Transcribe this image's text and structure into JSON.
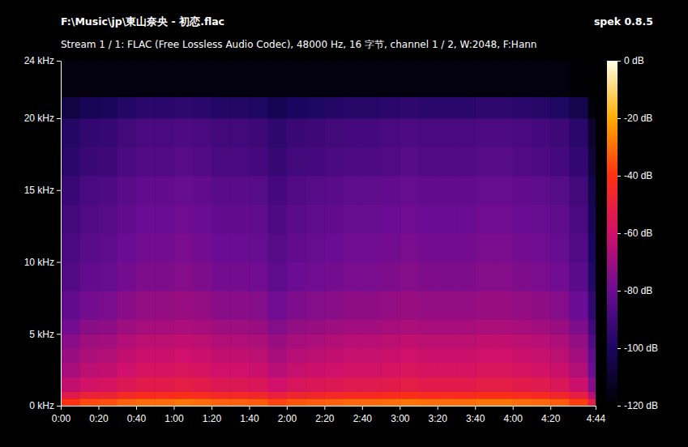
{
  "chart_data": {
    "type": "heatmap",
    "title": "F:\\Music\\jp\\東山奈央 - 初恋.flac",
    "subtitle": "Stream 1 / 1: FLAC (Free Lossless Audio Codec), 48000 Hz, 16 字节, channel 1 / 2, W:2048, F:Hann",
    "annotations": [
      "spek 0.8.5"
    ],
    "xlim": [
      0,
      284
    ],
    "xticks": [
      {
        "value": 0,
        "label": "0:00"
      },
      {
        "value": 20,
        "label": "0:20"
      },
      {
        "value": 40,
        "label": "0:40"
      },
      {
        "value": 60,
        "label": "1:00"
      },
      {
        "value": 80,
        "label": "1:20"
      },
      {
        "value": 100,
        "label": "1:40"
      },
      {
        "value": 120,
        "label": "2:00"
      },
      {
        "value": 140,
        "label": "2:20"
      },
      {
        "value": 160,
        "label": "2:40"
      },
      {
        "value": 180,
        "label": "3:00"
      },
      {
        "value": 200,
        "label": "3:20"
      },
      {
        "value": 220,
        "label": "3:40"
      },
      {
        "value": 240,
        "label": "4:00"
      },
      {
        "value": 260,
        "label": "4:20"
      },
      {
        "value": 284,
        "label": "4:44"
      }
    ],
    "ylim": [
      0,
      24
    ],
    "yticks": [
      {
        "value": 0,
        "label": "0 kHz"
      },
      {
        "value": 5,
        "label": "5 kHz"
      },
      {
        "value": 10,
        "label": "10 kHz"
      },
      {
        "value": 15,
        "label": "15 kHz"
      },
      {
        "value": 20,
        "label": "20 kHz"
      },
      {
        "value": 24,
        "label": "24 kHz"
      }
    ],
    "x_edges": [
      0,
      10,
      20,
      30,
      40,
      50,
      60,
      70,
      80,
      90,
      100,
      110,
      120,
      130,
      140,
      150,
      160,
      170,
      180,
      190,
      200,
      210,
      220,
      230,
      240,
      250,
      260,
      270,
      280,
      284
    ],
    "y_edges": [
      0,
      0.5,
      1,
      2,
      3,
      4,
      5,
      6,
      8,
      10,
      12,
      14,
      16,
      18,
      20,
      21.5,
      24
    ],
    "cells": [
      [
        -40,
        -36,
        -35,
        -32,
        -30,
        -30,
        -29,
        -30,
        -32,
        -32,
        -33,
        -37,
        -34,
        -33,
        -32,
        -31,
        -31,
        -30,
        -29,
        -30,
        -30,
        -30,
        -29,
        -29,
        -30,
        -31,
        -33,
        -38,
        -52
      ],
      [
        -53,
        -49,
        -48,
        -45,
        -43,
        -43,
        -42,
        -43,
        -45,
        -45,
        -46,
        -50,
        -47,
        -46,
        -45,
        -44,
        -44,
        -43,
        -42,
        -43,
        -43,
        -43,
        -42,
        -42,
        -43,
        -44,
        -46,
        -51,
        -65
      ],
      [
        -63,
        -59,
        -58,
        -55,
        -53,
        -53,
        -52,
        -53,
        -55,
        -55,
        -56,
        -60,
        -57,
        -56,
        -55,
        -54,
        -54,
        -53,
        -52,
        -53,
        -53,
        -53,
        -52,
        -52,
        -53,
        -54,
        -56,
        -61,
        -75
      ],
      [
        -68,
        -64,
        -63,
        -60,
        -58,
        -58,
        -57,
        -58,
        -60,
        -60,
        -61,
        -65,
        -62,
        -61,
        -60,
        -59,
        -59,
        -58,
        -57,
        -58,
        -58,
        -58,
        -57,
        -57,
        -58,
        -59,
        -61,
        -66,
        -80
      ],
      [
        -71,
        -67,
        -66,
        -63,
        -61,
        -61,
        -60,
        -61,
        -63,
        -63,
        -64,
        -68,
        -65,
        -64,
        -63,
        -62,
        -62,
        -61,
        -60,
        -61,
        -61,
        -61,
        -60,
        -60,
        -61,
        -62,
        -64,
        -69,
        -83
      ],
      [
        -74,
        -70,
        -69,
        -66,
        -64,
        -64,
        -63,
        -64,
        -66,
        -66,
        -67,
        -71,
        -68,
        -67,
        -66,
        -65,
        -65,
        -64,
        -63,
        -64,
        -64,
        -64,
        -63,
        -63,
        -64,
        -65,
        -67,
        -72,
        -86
      ],
      [
        -78,
        -74,
        -73,
        -70,
        -68,
        -68,
        -67,
        -68,
        -70,
        -70,
        -71,
        -75,
        -72,
        -71,
        -70,
        -69,
        -69,
        -68,
        -67,
        -68,
        -68,
        -68,
        -67,
        -67,
        -68,
        -69,
        -71,
        -76,
        -90
      ],
      [
        -82,
        -78,
        -77,
        -74,
        -72,
        -72,
        -71,
        -72,
        -74,
        -74,
        -75,
        -79,
        -76,
        -75,
        -74,
        -73,
        -73,
        -72,
        -71,
        -72,
        -72,
        -72,
        -71,
        -71,
        -72,
        -73,
        -75,
        -80,
        -94
      ],
      [
        -86,
        -82,
        -81,
        -78,
        -76,
        -76,
        -75,
        -76,
        -78,
        -78,
        -79,
        -83,
        -80,
        -79,
        -78,
        -77,
        -77,
        -76,
        -75,
        -76,
        -76,
        -76,
        -75,
        -75,
        -76,
        -77,
        -79,
        -84,
        -98
      ],
      [
        -88,
        -84,
        -83,
        -80,
        -78,
        -78,
        -77,
        -78,
        -80,
        -80,
        -81,
        -85,
        -82,
        -81,
        -80,
        -79,
        -79,
        -78,
        -77,
        -78,
        -78,
        -78,
        -77,
        -77,
        -78,
        -79,
        -81,
        -86,
        -100
      ],
      [
        -90,
        -86,
        -85,
        -82,
        -80,
        -80,
        -79,
        -80,
        -82,
        -82,
        -83,
        -87,
        -84,
        -83,
        -82,
        -81,
        -81,
        -80,
        -79,
        -80,
        -80,
        -80,
        -79,
        -79,
        -80,
        -81,
        -83,
        -88,
        -102
      ],
      [
        -92,
        -88,
        -87,
        -84,
        -82,
        -82,
        -81,
        -82,
        -84,
        -84,
        -85,
        -89,
        -86,
        -85,
        -84,
        -83,
        -83,
        -82,
        -81,
        -82,
        -82,
        -82,
        -81,
        -81,
        -82,
        -83,
        -85,
        -90,
        -104
      ],
      [
        -96,
        -92,
        -91,
        -88,
        -86,
        -86,
        -85,
        -86,
        -88,
        -88,
        -89,
        -93,
        -90,
        -89,
        -88,
        -87,
        -87,
        -86,
        -85,
        -86,
        -86,
        -86,
        -85,
        -85,
        -86,
        -87,
        -89,
        -94,
        -108
      ],
      [
        -98,
        -94,
        -93,
        -90,
        -88,
        -88,
        -87,
        -88,
        -90,
        -90,
        -91,
        -95,
        -92,
        -91,
        -90,
        -89,
        -89,
        -88,
        -87,
        -88,
        -88,
        -88,
        -87,
        -87,
        -88,
        -89,
        -91,
        -96,
        -110
      ],
      [
        -106,
        -102,
        -101,
        -98,
        -96,
        -96,
        -95,
        -96,
        -98,
        -98,
        -99,
        -103,
        -100,
        -99,
        -98,
        -97,
        -97,
        -96,
        -95,
        -96,
        -96,
        -96,
        -95,
        -95,
        -96,
        -97,
        -99,
        -104,
        -118
      ],
      [
        -117,
        -117,
        -117,
        -117,
        -117,
        -117,
        -117,
        -117,
        -117,
        -117,
        -117,
        -117,
        -117,
        -117,
        -117,
        -117,
        -117,
        -117,
        -117,
        -117,
        -117,
        -117,
        -117,
        -117,
        -117,
        -117,
        -117,
        -119,
        -120
      ]
    ],
    "colorbar_range": [
      -120,
      0
    ],
    "colorbar_ticks": [
      {
        "value": 0,
        "label": "0 dB"
      },
      {
        "value": -20,
        "label": "-20 dB"
      },
      {
        "value": -40,
        "label": "-40 dB"
      },
      {
        "value": -60,
        "label": "-60 dB"
      },
      {
        "value": -80,
        "label": "-80 dB"
      },
      {
        "value": -100,
        "label": "-100 dB"
      },
      {
        "value": -120,
        "label": "-120 dB"
      }
    ]
  }
}
